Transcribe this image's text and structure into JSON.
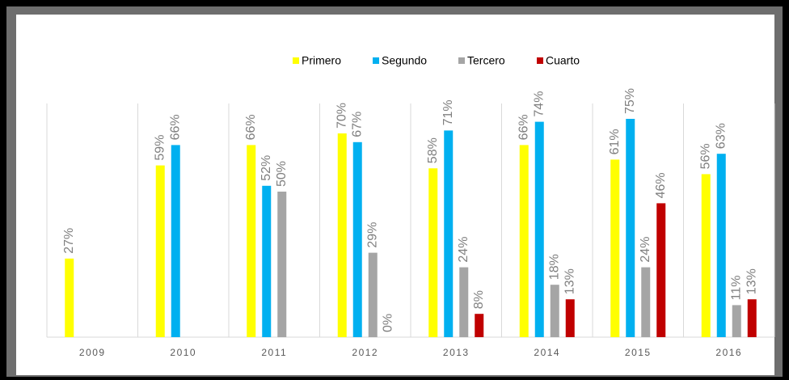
{
  "chart_data": {
    "type": "bar",
    "categories": [
      "2009",
      "2010",
      "2011",
      "2012",
      "2013",
      "2014",
      "2015",
      "2016"
    ],
    "series": [
      {
        "name": "Primero",
        "color": "#ffff00",
        "values": [
          27,
          59,
          66,
          70,
          58,
          66,
          61,
          56
        ],
        "value_labels": [
          "27%",
          "59%",
          "66%",
          "70%",
          "58%",
          "66%",
          "61%",
          "56%"
        ]
      },
      {
        "name": "Segundo",
        "color": "#00b0f0",
        "values": [
          null,
          66,
          52,
          67,
          71,
          74,
          75,
          63
        ],
        "value_labels": [
          null,
          "66%",
          "52%",
          "67%",
          "71%",
          "74%",
          "75%",
          "63%"
        ]
      },
      {
        "name": "Tercero",
        "color": "#a5a5a5",
        "values": [
          null,
          null,
          50,
          29,
          24,
          18,
          24,
          11
        ],
        "value_labels": [
          null,
          null,
          "50%",
          "29%",
          "24%",
          "18%",
          "24%",
          "11%"
        ]
      },
      {
        "name": "Cuarto",
        "color": "#c00000",
        "values": [
          null,
          null,
          null,
          0,
          8,
          13,
          46,
          13
        ],
        "value_labels": [
          null,
          null,
          null,
          "0%",
          "8%",
          "13%",
          "46%",
          "13%"
        ]
      }
    ],
    "legend": "top"
  }
}
